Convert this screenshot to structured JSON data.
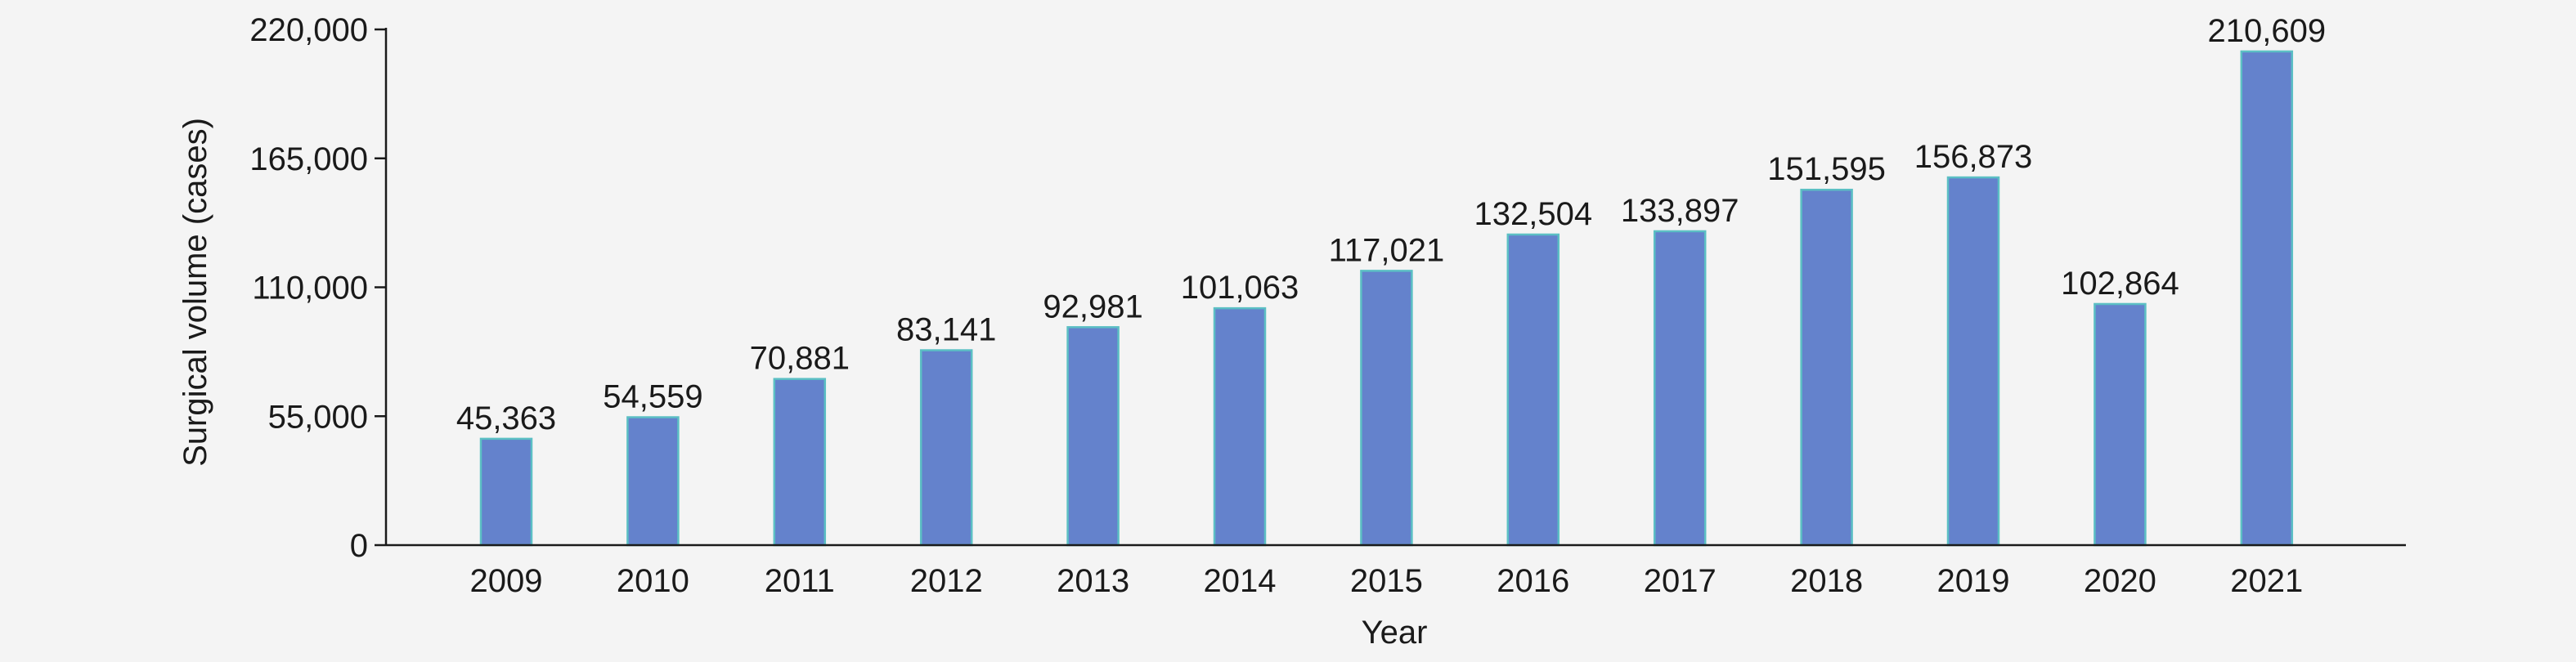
{
  "chart_data": {
    "type": "bar",
    "categories": [
      "2009",
      "2010",
      "2011",
      "2012",
      "2013",
      "2014",
      "2015",
      "2016",
      "2017",
      "2018",
      "2019",
      "2020",
      "2021"
    ],
    "values": [
      45363,
      54559,
      70881,
      83141,
      92981,
      101063,
      117021,
      132504,
      133897,
      151595,
      156873,
      102864,
      210609
    ],
    "data_labels": [
      "45,363",
      "54,559",
      "70,881",
      "83,141",
      "92,981",
      "101,063",
      "117,021",
      "132,504",
      "133,897",
      "151,595",
      "156,873",
      "102,864",
      "210,609"
    ],
    "xlabel": "Year",
    "ylabel": "Surgical volume (cases)",
    "ylim": [
      0,
      220000
    ],
    "yticks": [
      0,
      55000,
      110000,
      165000,
      220000
    ],
    "ytick_labels": [
      "0",
      "55,000",
      "110,000",
      "165,000",
      "220,000"
    ],
    "grid": false,
    "legend": "none",
    "colors": {
      "bar_fill": "#6482cc",
      "bar_edge": "#5bbfc4",
      "axis": "#1a1a1a",
      "background": "#f4f4f4"
    }
  }
}
